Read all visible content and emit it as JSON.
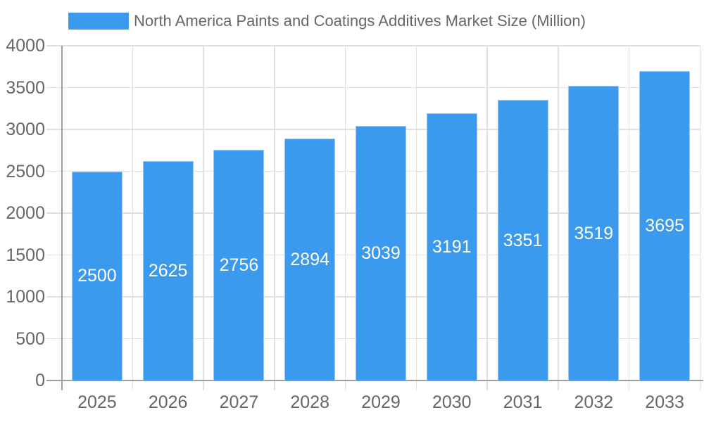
{
  "chart_data": {
    "type": "bar",
    "title": "North America Paints and Coatings Additives Market Size (Million)",
    "legend_position": "top",
    "categories": [
      "2025",
      "2026",
      "2027",
      "2028",
      "2029",
      "2030",
      "2031",
      "2032",
      "2033"
    ],
    "series": [
      {
        "name": "North America Paints and Coatings Additives Market Size (Million)",
        "values": [
          2500,
          2625,
          2756,
          2894,
          3039,
          3191,
          3351,
          3519,
          3695
        ]
      }
    ],
    "value_labels_inside_bars": true,
    "xlabel": "",
    "ylabel": "",
    "ylim": [
      0,
      4000
    ],
    "ytick_step": 500,
    "yticks": [
      "0",
      "500",
      "1000",
      "1500",
      "2000",
      "2500",
      "3000",
      "3500",
      "4000"
    ],
    "grid": true,
    "colors": {
      "bar": "#3B9AEE",
      "bar_border": "#9CCBF4",
      "grid": "#E0E0E0",
      "axis_line": "#9E9E9E",
      "tick_text": "#666666",
      "value_text": "#FFFFFF",
      "legend_text": "#666666",
      "background": "#FFFFFF"
    }
  }
}
